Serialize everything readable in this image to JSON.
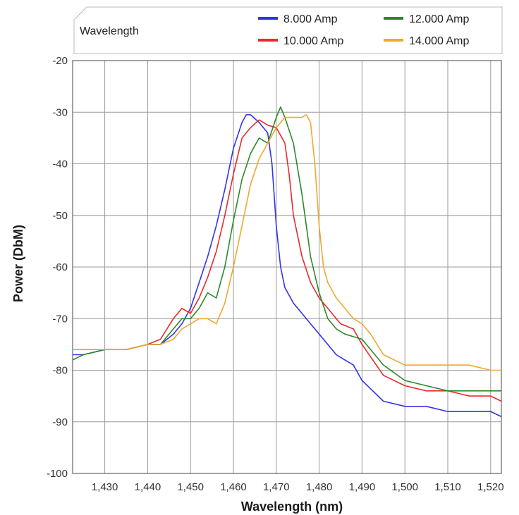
{
  "chart_data": {
    "type": "line",
    "title": "",
    "xlabel": "Wavelength (nm)",
    "ylabel": "Power (DbM)",
    "legend_title": "Wavelength",
    "legend_position": "top",
    "grid": true,
    "xlim": [
      1422.5,
      1522.5
    ],
    "ylim": [
      -100,
      -20
    ],
    "xticks": [
      1430,
      1440,
      1450,
      1460,
      1470,
      1480,
      1490,
      1500,
      1510,
      1520
    ],
    "xtick_labels": [
      "1,430",
      "1,440",
      "1,450",
      "1,460",
      "1,470",
      "1,480",
      "1,490",
      "1,500",
      "1,510",
      "1,520"
    ],
    "yticks": [
      -20,
      -30,
      -40,
      -50,
      -60,
      -70,
      -80,
      -90,
      -100
    ],
    "ytick_labels": [
      "-20",
      "-30",
      "-40",
      "-50",
      "-60",
      "-70",
      "-80",
      "-90",
      "-100"
    ],
    "series": [
      {
        "name": "8.000 Amp",
        "color": "#3333ee",
        "x": [
          1422.5,
          1425,
          1430,
          1435,
          1440,
          1443,
          1446,
          1448,
          1450,
          1452,
          1454,
          1456,
          1458,
          1460,
          1462,
          1463,
          1464,
          1466,
          1468,
          1469,
          1470,
          1471,
          1472,
          1474,
          1476,
          1478,
          1480,
          1482,
          1484,
          1486,
          1488,
          1490,
          1495,
          1500,
          1505,
          1510,
          1515,
          1520,
          1522.5
        ],
        "y": [
          -77,
          -77,
          -76,
          -76,
          -75,
          -75,
          -73,
          -71,
          -68,
          -63,
          -58,
          -52,
          -45,
          -37,
          -32,
          -30.5,
          -30.5,
          -32,
          -34,
          -40,
          -52,
          -60,
          -64,
          -67,
          -69,
          -71,
          -73,
          -75,
          -77,
          -78,
          -79,
          -82,
          -86,
          -87,
          -87,
          -88,
          -88,
          -88,
          -89
        ]
      },
      {
        "name": "10.000 Amp",
        "color": "#e82a2a",
        "x": [
          1422.5,
          1425,
          1430,
          1435,
          1440,
          1443,
          1446,
          1448,
          1450,
          1452,
          1454,
          1456,
          1458,
          1460,
          1462,
          1464,
          1466,
          1468,
          1470,
          1472,
          1473,
          1474,
          1476,
          1478,
          1480,
          1482,
          1485,
          1488,
          1490,
          1495,
          1500,
          1505,
          1510,
          1515,
          1520,
          1522.5
        ],
        "y": [
          -76,
          -76,
          -76,
          -76,
          -75,
          -74,
          -70,
          -68,
          -69,
          -66,
          -62,
          -57,
          -50,
          -42,
          -35,
          -33,
          -31.5,
          -32.5,
          -33,
          -36,
          -42,
          -50,
          -58,
          -63,
          -66,
          -68,
          -71,
          -72,
          -75,
          -81,
          -83,
          -84,
          -84,
          -85,
          -85,
          -86
        ]
      },
      {
        "name": "12.000 Amp",
        "color": "#2a8a2a",
        "x": [
          1422.5,
          1425,
          1430,
          1435,
          1440,
          1443,
          1446,
          1448,
          1450,
          1452,
          1454,
          1456,
          1458,
          1460,
          1462,
          1464,
          1466,
          1468,
          1470,
          1471,
          1472,
          1474,
          1476,
          1477,
          1478,
          1480,
          1482,
          1484,
          1486,
          1488,
          1490,
          1495,
          1500,
          1505,
          1510,
          1515,
          1520,
          1522.5
        ],
        "y": [
          -78,
          -77,
          -76,
          -76,
          -75,
          -75,
          -72,
          -70,
          -70,
          -68,
          -65,
          -66,
          -60,
          -51,
          -43,
          -38,
          -35,
          -36,
          -31,
          -29,
          -31,
          -36,
          -46,
          -52,
          -58,
          -65,
          -70,
          -72,
          -73,
          -73.5,
          -74,
          -79,
          -82,
          -83,
          -84,
          -84,
          -84,
          -84
        ]
      },
      {
        "name": "14.000 Amp",
        "color": "#f0a830",
        "x": [
          1422.5,
          1425,
          1430,
          1435,
          1440,
          1443,
          1446,
          1448,
          1450,
          1452,
          1454,
          1456,
          1458,
          1460,
          1462,
          1464,
          1466,
          1468,
          1470,
          1472,
          1474,
          1476,
          1477,
          1478,
          1479,
          1480,
          1481,
          1482,
          1484,
          1486,
          1488,
          1490,
          1492,
          1495,
          1500,
          1505,
          1510,
          1515,
          1520,
          1522.5
        ],
        "y": [
          -76,
          -76,
          -76,
          -76,
          -75,
          -75,
          -74,
          -72,
          -71,
          -70,
          -70,
          -71,
          -67,
          -60,
          -52,
          -44,
          -39,
          -36,
          -33,
          -31,
          -31,
          -31,
          -30.5,
          -32,
          -40,
          -52,
          -60,
          -63,
          -66,
          -68,
          -70,
          -71,
          -73,
          -77,
          -79,
          -79,
          -79,
          -79,
          -80,
          -80
        ]
      }
    ]
  }
}
